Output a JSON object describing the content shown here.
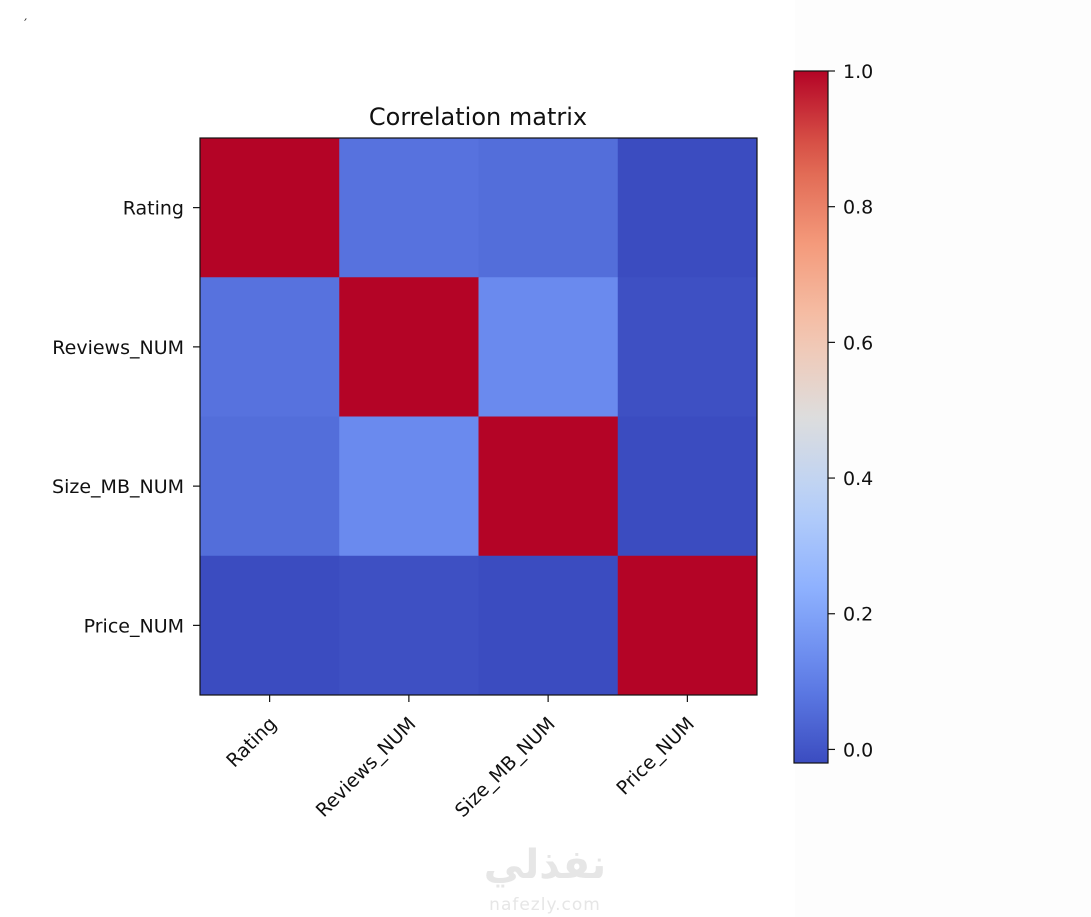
{
  "corner_mark": "′",
  "watermark": {
    "arabic": "نفذلي",
    "latin": "nafezly.com"
  },
  "chart_data": {
    "type": "heatmap",
    "title": "Correlation matrix",
    "colormap": "coolwarm",
    "rows": [
      "Rating",
      "Reviews_NUM",
      "Size_MB_NUM",
      "Price_NUM"
    ],
    "columns": [
      "Rating",
      "Reviews_NUM",
      "Size_MB_NUM",
      "Price_NUM"
    ],
    "values": [
      [
        1.0,
        0.07,
        0.06,
        -0.02
      ],
      [
        0.07,
        1.0,
        0.13,
        -0.01
      ],
      [
        0.06,
        0.13,
        1.0,
        -0.02
      ],
      [
        -0.02,
        -0.01,
        -0.02,
        1.0
      ]
    ],
    "colorbar": {
      "range": [
        -0.02,
        1.0
      ],
      "ticks": [
        0.0,
        0.2,
        0.4,
        0.6,
        0.8,
        1.0
      ],
      "tick_labels": [
        "0.0",
        "0.2",
        "0.4",
        "0.6",
        "0.8",
        "1.0"
      ]
    }
  }
}
